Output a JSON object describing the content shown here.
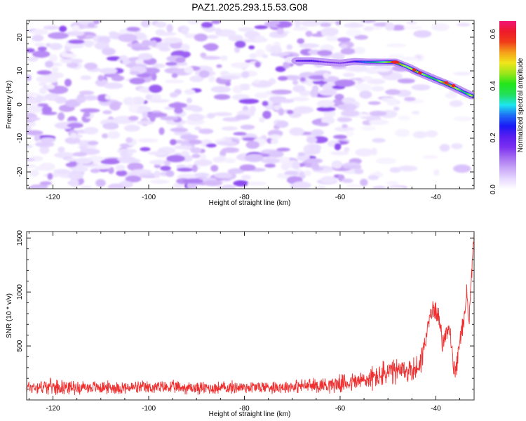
{
  "chart_data": [
    {
      "type": "heatmap",
      "title": "PAZ1.2025.293.15.53.G08",
      "xlabel": "Height of straight line (km)",
      "ylabel": "Frequency (Hz)",
      "xlim": [
        -125.5,
        -32
      ],
      "ylim": [
        -25,
        25
      ],
      "xticks": [
        -120,
        -100,
        -80,
        -60,
        -40
      ],
      "xtick_labels": [
        "-120",
        "-100",
        "-80",
        "-60",
        "-40"
      ],
      "yticks": [
        -20,
        -10,
        0,
        10,
        20
      ],
      "ytick_labels": [
        "-20",
        "-10",
        "0",
        "10",
        "20"
      ],
      "colorbar": {
        "label": "Normalized spectral amplitude",
        "range": [
          0,
          0.65
        ],
        "ticks": [
          0.0,
          0.2,
          0.4,
          0.6
        ],
        "tick_labels": [
          "0.0",
          "0.2",
          "0.4",
          "0.6"
        ],
        "colormap": [
          "#ffffff",
          "#e6d8ff",
          "#c9a6f7",
          "#a56ef2",
          "#7b2ff0",
          "#5a1ef0",
          "#1a1af5",
          "#1e6cf6",
          "#1ee6ee",
          "#22e05a",
          "#23e61a",
          "#9ae61a",
          "#f0e61a",
          "#f5a01a",
          "#f03c1a",
          "#ee1a2a",
          "#f0147a"
        ]
      },
      "ridge": {
        "description_points_km_hz_amp": [
          [
            -69,
            13.0,
            0.2
          ],
          [
            -66,
            13.0,
            0.22
          ],
          [
            -63,
            12.6,
            0.18
          ],
          [
            -60,
            12.3,
            0.16
          ],
          [
            -57,
            12.8,
            0.22
          ],
          [
            -54,
            12.6,
            0.35
          ],
          [
            -51,
            12.6,
            0.45
          ],
          [
            -48.5,
            12.6,
            0.62
          ],
          [
            -46,
            11.2,
            0.45
          ],
          [
            -44,
            9.8,
            0.55
          ],
          [
            -42,
            8.6,
            0.42
          ],
          [
            -40,
            7.4,
            0.38
          ],
          [
            -38,
            6.3,
            0.6
          ],
          [
            -36,
            5.0,
            0.5
          ],
          [
            -34,
            3.6,
            0.35
          ],
          [
            -32.5,
            2.6,
            0.5
          ]
        ]
      }
    },
    {
      "type": "line",
      "xlabel": "Height of straight line (km)",
      "ylabel": "SNR (10 * v/v)",
      "xlim": [
        -125.5,
        -32
      ],
      "ylim": [
        0,
        1560
      ],
      "xticks": [
        -120,
        -100,
        -80,
        -60,
        -40
      ],
      "xtick_labels": [
        "-120",
        "-100",
        "-80",
        "-60",
        "-40"
      ],
      "yticks": [
        500,
        1000,
        1500
      ],
      "ytick_labels": [
        "500",
        "1000",
        "1500"
      ],
      "line_color": "#f03030",
      "series": [
        {
          "name": "SNR",
          "x_km": [
            -125.5,
            -120,
            -115,
            -110,
            -105,
            -100,
            -95,
            -90,
            -85,
            -80,
            -75,
            -70,
            -65,
            -60,
            -55,
            -52,
            -50,
            -48,
            -46,
            -44,
            -43,
            -42,
            -41,
            -40,
            -39.5,
            -39,
            -38.5,
            -38,
            -37.5,
            -37,
            -36.5,
            -36,
            -35.5,
            -35,
            -34.5,
            -34,
            -33.5,
            -33,
            -32.5,
            -32
          ],
          "baseline": [
            120,
            125,
            115,
            118,
            112,
            115,
            118,
            110,
            112,
            118,
            120,
            125,
            135,
            150,
            180,
            220,
            250,
            260,
            270,
            290,
            380,
            600,
            800,
            850,
            780,
            650,
            520,
            600,
            700,
            600,
            400,
            200,
            350,
            550,
            650,
            800,
            1000,
            700,
            1200,
            1560
          ],
          "noise_amplitude": [
            60,
            70,
            60,
            60,
            60,
            60,
            60,
            60,
            60,
            60,
            60,
            60,
            70,
            80,
            100,
            120,
            130,
            120,
            120,
            120,
            120,
            110,
            100,
            90,
            90,
            100,
            100,
            100,
            100,
            100,
            100,
            80,
            100,
            100,
            100,
            100,
            100,
            120,
            120,
            40
          ]
        }
      ]
    }
  ]
}
